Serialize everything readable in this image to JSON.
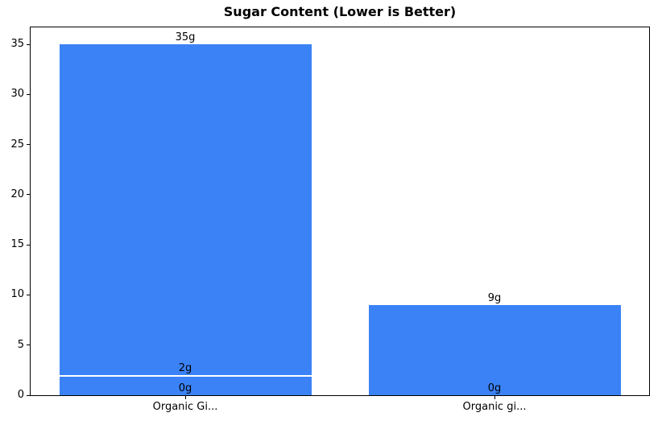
{
  "chart_data": {
    "type": "bar",
    "title": "Sugar Content (Lower is Better)",
    "xlabel": "",
    "ylabel": "",
    "categories": [
      "Organic Gi...",
      "Organic gi..."
    ],
    "series": [
      {
        "category": "Organic Gi...",
        "bars": [
          {
            "value": 35,
            "label": "35g"
          },
          {
            "value": 2,
            "label": "2g"
          },
          {
            "value": 0,
            "label": "0g"
          }
        ]
      },
      {
        "category": "Organic gi...",
        "bars": [
          {
            "value": 9,
            "label": "9g"
          },
          {
            "value": 0,
            "label": "0g"
          }
        ]
      }
    ],
    "yticks": [
      0,
      5,
      10,
      15,
      20,
      25,
      30,
      35
    ],
    "ylim": [
      0,
      36.7
    ],
    "grid": false,
    "legend": "none",
    "bar_color": "#3b82f6",
    "bar_overlap_edge_color": "#ffffff",
    "axis_color": "#000000",
    "text_color": "#000000"
  }
}
